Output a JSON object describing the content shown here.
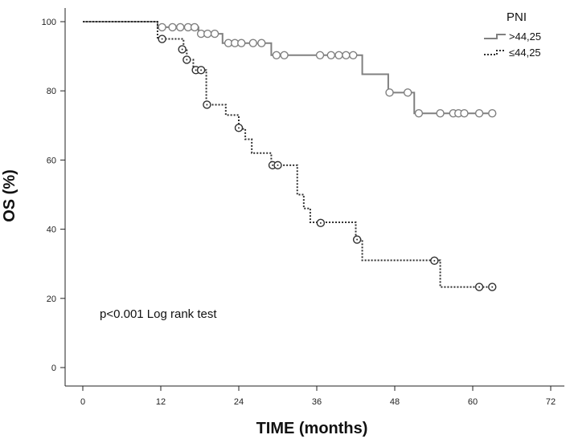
{
  "chart_data": {
    "type": "line",
    "subtype": "kaplan-meier",
    "xlabel": "TIME (months)",
    "ylabel": "OS (%)",
    "xlim": [
      0,
      72
    ],
    "ylim": [
      0,
      100
    ],
    "x_ticks": [
      0,
      12,
      24,
      36,
      48,
      60,
      72
    ],
    "y_ticks": [
      0,
      20,
      40,
      60,
      80,
      100
    ],
    "grid": false,
    "legend_title": "PNI",
    "legend_position": "top-right",
    "annotation": "p<0.001 Log rank test",
    "series": [
      {
        "name": ">44,25",
        "color": "#808080",
        "dash": "solid",
        "steps": [
          [
            0,
            100
          ],
          [
            11.5,
            98.4
          ],
          [
            17.8,
            96.5
          ],
          [
            21.5,
            93.8
          ],
          [
            29,
            90.3
          ],
          [
            43,
            84.8
          ],
          [
            47,
            79.5
          ],
          [
            51,
            73.5
          ],
          [
            63,
            73.5
          ]
        ],
        "censored": [
          [
            12.2,
            98.4
          ],
          [
            13.8,
            98.4
          ],
          [
            15,
            98.4
          ],
          [
            16.2,
            98.4
          ],
          [
            17.2,
            98.4
          ],
          [
            18.2,
            96.5
          ],
          [
            19.2,
            96.5
          ],
          [
            20.3,
            96.5
          ],
          [
            22.4,
            93.8
          ],
          [
            23.4,
            93.8
          ],
          [
            24.4,
            93.8
          ],
          [
            26.2,
            93.8
          ],
          [
            27.5,
            93.8
          ],
          [
            29.8,
            90.3
          ],
          [
            31,
            90.3
          ],
          [
            36.5,
            90.3
          ],
          [
            38.2,
            90.3
          ],
          [
            39.4,
            90.3
          ],
          [
            40.5,
            90.3
          ],
          [
            41.6,
            90.3
          ],
          [
            47.2,
            79.5
          ],
          [
            50,
            79.5
          ],
          [
            51.7,
            73.5
          ],
          [
            55,
            73.5
          ],
          [
            57,
            73.5
          ],
          [
            57.8,
            73.5
          ],
          [
            58.7,
            73.5
          ],
          [
            61,
            73.5
          ],
          [
            63,
            73.5
          ]
        ]
      },
      {
        "name": "≤44,25",
        "color": "#303030",
        "dash": "dotted",
        "steps": [
          [
            0,
            100
          ],
          [
            11.5,
            95
          ],
          [
            15.5,
            92
          ],
          [
            16,
            89
          ],
          [
            17,
            86
          ],
          [
            19,
            76
          ],
          [
            22,
            73
          ],
          [
            24,
            69
          ],
          [
            25,
            66
          ],
          [
            26,
            62
          ],
          [
            29,
            58.5
          ],
          [
            33,
            50
          ],
          [
            34,
            46
          ],
          [
            35,
            42
          ],
          [
            42,
            37
          ],
          [
            43,
            31
          ],
          [
            55,
            23.3
          ],
          [
            63,
            23.3
          ]
        ],
        "censored": [
          [
            12.2,
            95
          ],
          [
            15.3,
            92
          ],
          [
            16,
            89
          ],
          [
            17.4,
            86
          ],
          [
            18.2,
            86
          ],
          [
            19.1,
            76
          ],
          [
            24,
            69.3
          ],
          [
            29.2,
            58.5
          ],
          [
            30,
            58.5
          ],
          [
            36.6,
            41.8
          ],
          [
            42.2,
            37
          ],
          [
            54.1,
            30.9
          ],
          [
            61,
            23.3
          ],
          [
            63,
            23.3
          ]
        ]
      }
    ]
  }
}
